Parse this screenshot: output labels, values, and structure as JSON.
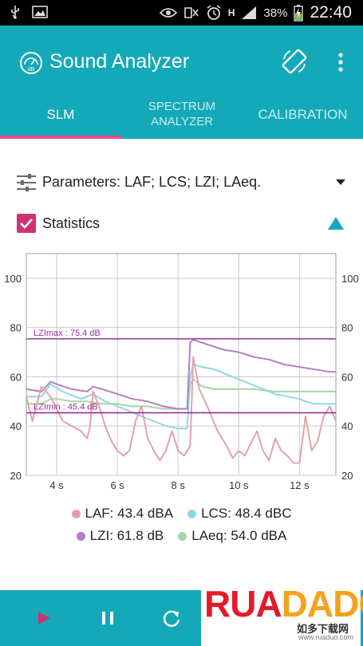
{
  "status_bar": {
    "battery": "38%",
    "clock": "22:40",
    "network": "H"
  },
  "app_bar": {
    "title": "Sound Analyzer",
    "logo_text": "dB"
  },
  "tabs": [
    {
      "label": "SLM",
      "active": true
    },
    {
      "label": "SPECTRUM\nANALYZER",
      "active": false
    },
    {
      "label": "CALIBRATION",
      "active": false
    }
  ],
  "parameters": {
    "label": "Parameters: LAF; LCS; LZI; LAeq."
  },
  "statistics": {
    "label": "Statistics",
    "checked": true
  },
  "colors": {
    "accent": "#14a9b9",
    "tab_indicator": "#e84a8a",
    "checkbox": "#d0326f",
    "collapse_arrow": "#14a9b9",
    "laf": "#e3a2ab",
    "lcs": "#8fd8e0",
    "lzi": "#b27fc2",
    "laeq": "#a7d4a8",
    "marker_line": "#9b2ca0"
  },
  "chart_data": {
    "type": "line",
    "xlabel": "",
    "ylabel": "",
    "xlim": [
      3.0,
      13.2
    ],
    "ylim": [
      20,
      110
    ],
    "x_ticks": [
      4,
      6,
      8,
      10,
      12
    ],
    "x_tick_labels": [
      "4 s",
      "6 s",
      "8 s",
      "10 s",
      "12 s"
    ],
    "y_ticks": [
      20,
      40,
      60,
      80,
      100
    ],
    "y_tick_labels": [
      "20",
      "40",
      "60",
      "80",
      "100"
    ],
    "grid": true,
    "markers": [
      {
        "label": "LZImax : 75.4 dB",
        "value": 75.4
      },
      {
        "label": "LZImin : 45.4 dB",
        "value": 45.4
      }
    ],
    "series": [
      {
        "name": "LAF",
        "x": [
          3.0,
          3.2,
          3.5,
          3.8,
          4.0,
          4.2,
          4.5,
          4.8,
          5.0,
          5.1,
          5.2,
          5.4,
          5.6,
          5.8,
          6.0,
          6.2,
          6.4,
          6.6,
          6.8,
          7.0,
          7.2,
          7.4,
          7.6,
          7.8,
          8.0,
          8.2,
          8.3,
          8.4,
          8.5,
          8.7,
          9.0,
          9.3,
          9.6,
          9.8,
          10.0,
          10.2,
          10.4,
          10.6,
          10.8,
          11.0,
          11.2,
          11.4,
          11.6,
          11.8,
          12.0,
          12.2,
          12.4,
          12.6,
          12.8,
          13.0,
          13.2
        ],
        "y": [
          52,
          42,
          56,
          52,
          47,
          42,
          40,
          38,
          35,
          40,
          54,
          48,
          40,
          34,
          30,
          28,
          30,
          42,
          48,
          35,
          30,
          26,
          30,
          38,
          30,
          28,
          30,
          32,
          68,
          55,
          47,
          38,
          32,
          27,
          30,
          28,
          33,
          38,
          30,
          26,
          35,
          30,
          28,
          25,
          25,
          44,
          30,
          34,
          44,
          48,
          42
        ]
      },
      {
        "name": "LCS",
        "x": [
          3.0,
          3.5,
          3.8,
          4.2,
          4.8,
          5.2,
          5.6,
          6.0,
          6.4,
          6.8,
          7.2,
          7.6,
          8.0,
          8.3,
          8.4,
          8.5,
          8.8,
          9.2,
          9.6,
          10.0,
          10.4,
          10.8,
          11.2,
          11.6,
          12.0,
          12.2,
          12.5,
          12.8,
          13.0,
          13.2
        ],
        "y": [
          52,
          52,
          57,
          54,
          51,
          53,
          50,
          48,
          46,
          44,
          42,
          40,
          39,
          39,
          60,
          65,
          64,
          63,
          61,
          59,
          57,
          55,
          53,
          52,
          51,
          50,
          49,
          49,
          49,
          49
        ]
      },
      {
        "name": "LZI",
        "x": [
          3.0,
          3.5,
          3.8,
          4.0,
          4.5,
          5.0,
          5.2,
          5.5,
          6.0,
          6.5,
          7.0,
          7.5,
          8.0,
          8.3,
          8.4,
          8.5,
          9.0,
          9.5,
          10.0,
          10.5,
          11.0,
          11.5,
          12.0,
          12.5,
          13.0,
          13.2
        ],
        "y": [
          55,
          54,
          58,
          57,
          55,
          54,
          56,
          55,
          53,
          51,
          50,
          48,
          47,
          47,
          74,
          75,
          73,
          71,
          70,
          68,
          67,
          65,
          64,
          63,
          62,
          62
        ]
      },
      {
        "name": "LAeq",
        "x": [
          3.0,
          3.5,
          3.8,
          4.0,
          4.5,
          5.0,
          5.5,
          6.0,
          6.5,
          7.0,
          7.5,
          8.0,
          8.3,
          8.4,
          8.5,
          8.8,
          9.2,
          9.8,
          10.5,
          11.2,
          12.0,
          12.5,
          13.0,
          13.2
        ],
        "y": [
          49,
          49,
          51,
          51,
          50,
          50,
          49,
          49,
          48,
          48,
          47,
          47,
          47,
          57,
          59,
          56,
          55,
          55,
          55,
          54,
          54,
          54,
          54,
          54
        ]
      }
    ]
  },
  "legend": [
    {
      "text": "LAF: 43.4 dBA",
      "color_key": "laf"
    },
    {
      "text": "LCS: 48.4 dBC",
      "color_key": "lcs"
    },
    {
      "text": "LZI: 61.8 dB",
      "color_key": "lzi"
    },
    {
      "text": "LAeq: 54.0 dBA",
      "color_key": "laeq"
    }
  ],
  "controls": {
    "play_icon": "play-icon",
    "pause_icon": "pause-icon",
    "reset_icon": "reset-icon"
  },
  "watermark": {
    "text_a": "RUA",
    "text_b": "DADO",
    "cn": "如多下载网",
    "url": "www.ruaduo.com"
  }
}
